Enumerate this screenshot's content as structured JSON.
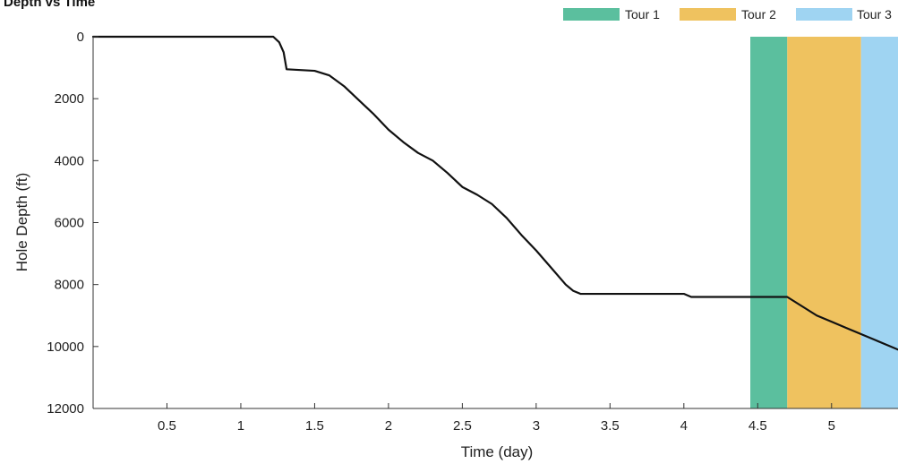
{
  "chart_data": {
    "type": "line",
    "title": "Depth vs Time",
    "xlabel": "Time (day)",
    "ylabel": "Hole Depth (ft)",
    "xlim": [
      0,
      5.45
    ],
    "ylim": [
      12000,
      0
    ],
    "y_reversed": true,
    "x_ticks": [
      0.5,
      1,
      1.5,
      2,
      2.5,
      3,
      3.5,
      4,
      4.5,
      5
    ],
    "x_tick_labels": [
      "0.5",
      "1",
      "1.5",
      "2",
      "2.5",
      "3",
      "3.5",
      "4",
      "4.5",
      "5"
    ],
    "y_ticks": [
      0,
      2000,
      4000,
      6000,
      8000,
      10000,
      12000
    ],
    "y_tick_labels": [
      "0",
      "2000",
      "4000",
      "6000",
      "8000",
      "10000",
      "12000"
    ],
    "grid": false,
    "legend_placement": "top-right",
    "line_color": "#111111",
    "series": [
      {
        "x": [
          0,
          1.22,
          1.26,
          1.29,
          1.31,
          1.5,
          1.6,
          1.7,
          1.8,
          1.9,
          2.0,
          2.1,
          2.2,
          2.3,
          2.4,
          2.5,
          2.6,
          2.7,
          2.8,
          2.9,
          3.0,
          3.1,
          3.2,
          3.25,
          3.3,
          3.4,
          3.6,
          3.8,
          4.0,
          4.05,
          4.3,
          4.5,
          4.7,
          4.8,
          4.9,
          5.0,
          5.1,
          5.2,
          5.3,
          5.45
        ],
        "y": [
          0,
          0,
          180,
          500,
          1050,
          1100,
          1250,
          1600,
          2050,
          2500,
          3000,
          3400,
          3750,
          4000,
          4400,
          4850,
          5100,
          5400,
          5850,
          6400,
          6900,
          7450,
          8000,
          8200,
          8300,
          8300,
          8300,
          8300,
          8300,
          8400,
          8400,
          8400,
          8400,
          8700,
          9000,
          9200,
          9400,
          9600,
          9800,
          10100
        ]
      }
    ],
    "bands": [
      {
        "name": "Tour 1",
        "x_start": 4.45,
        "x_end": 4.7,
        "color": "#5bbf9e"
      },
      {
        "name": "Tour 2",
        "x_start": 4.7,
        "x_end": 5.2,
        "color": "#efc25f"
      },
      {
        "name": "Tour 3",
        "x_start": 5.2,
        "x_end": 5.45,
        "color": "#9fd4f2"
      }
    ]
  }
}
